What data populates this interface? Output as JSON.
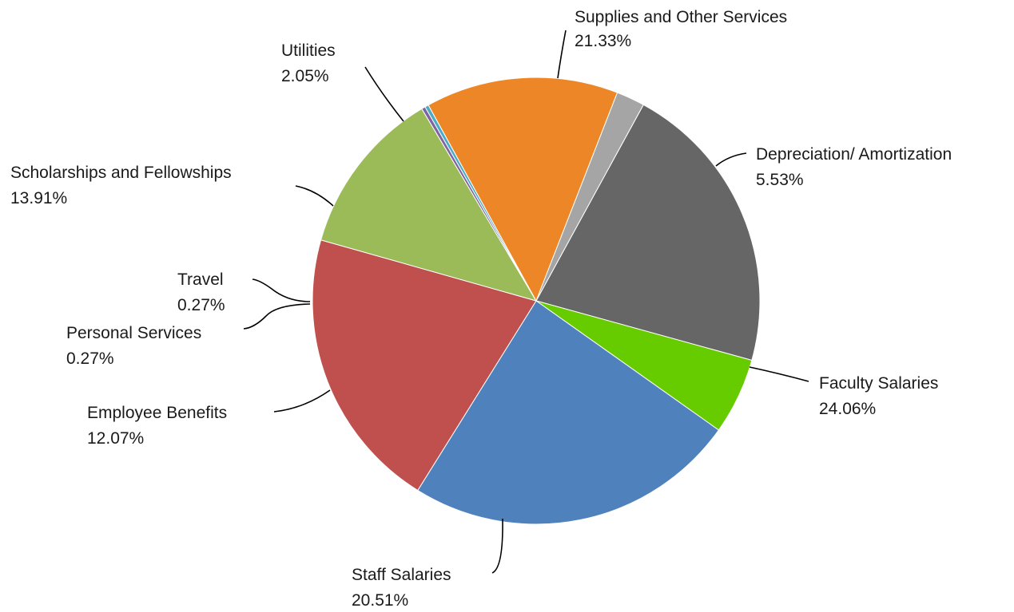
{
  "chart_data": {
    "type": "pie",
    "title": "",
    "start_category": "Supplies and Other Services",
    "direction": "clockwise",
    "slices": [
      {
        "label": "Supplies and Other Services",
        "value": 21.33,
        "pct": "21.33%",
        "color": "#666666"
      },
      {
        "label": "Depreciation/ Amortization",
        "value": 5.53,
        "pct": "5.53%",
        "color": "#66CC00"
      },
      {
        "label": "Faculty Salaries",
        "value": 24.06,
        "pct": "24.06%",
        "color": "#4F81BD"
      },
      {
        "label": "Staff Salaries",
        "value": 20.51,
        "pct": "20.51%",
        "color": "#C0504D"
      },
      {
        "label": "Employee Benefits",
        "value": 12.07,
        "pct": "12.07%",
        "color": "#9BBB59"
      },
      {
        "label": "Personal Services",
        "value": 0.27,
        "pct": "0.27%",
        "color": "#8064A2"
      },
      {
        "label": "Travel",
        "value": 0.27,
        "pct": "0.27%",
        "color": "#4BACC6"
      },
      {
        "label": "Scholarships and Fellowships",
        "value": 13.91,
        "pct": "13.91%",
        "color": "#ED8626"
      },
      {
        "label": "Utilities",
        "value": 2.05,
        "pct": "2.05%",
        "color": "#A5A5A5"
      }
    ],
    "data_labels": "outside with leader lines",
    "legend": "none"
  }
}
